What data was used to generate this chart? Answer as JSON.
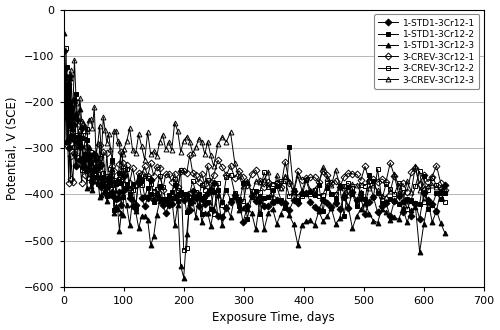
{
  "title": "",
  "xlabel": "Exposure Time, days",
  "ylabel": "Potential, V (SCE)",
  "xlim": [
    0,
    700
  ],
  "ylim": [
    -600,
    0
  ],
  "xticks": [
    0,
    100,
    200,
    300,
    400,
    500,
    600,
    700
  ],
  "yticks": [
    0,
    -100,
    -200,
    -300,
    -400,
    -500,
    -600
  ],
  "legend_labels": [
    "1-STD1-3Cr12-1",
    "1-STD1-3Cr12-2",
    "1-STD1-3Cr12-3",
    "3-CREV-3Cr12-1",
    "3-CREV-3Cr12-2",
    "3-CREV-3Cr12-3"
  ],
  "markers": [
    "D",
    "s",
    "^",
    "D",
    "s",
    "^"
  ],
  "fillstyles": [
    "full",
    "full",
    "full",
    "none",
    "none",
    "none"
  ],
  "markersize": 3.5,
  "linewidth": 0.7,
  "figsize": [
    5.0,
    3.3
  ],
  "dpi": 100,
  "grid_color": "#aaaaaa",
  "bg_color": "#ffffff",
  "line_color": "#000000"
}
